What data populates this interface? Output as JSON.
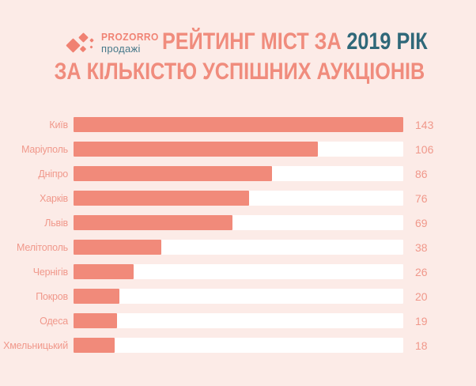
{
  "colors": {
    "background": "#fcebe7",
    "bar_fill": "#f18a7a",
    "bar_track": "#ffffff",
    "title_salmon": "#f08c7d",
    "title_teal": "#2f6879",
    "label_salmon": "#f0988b",
    "logo_salmon": "#f08374",
    "logo_teal": "#47798a"
  },
  "logo": {
    "brand": "PROZORRO",
    "subtitle": "продажі"
  },
  "title": {
    "line1_prefix": "РЕЙТИНГ МІСТ ЗА",
    "line1_highlight": "2019 РІК",
    "line2": "ЗА КІЛЬКІСТЮ УСПІШНИХ АУКЦІОНІВ"
  },
  "chart_data": {
    "type": "bar",
    "orientation": "horizontal",
    "title": "РЕЙТИНГ МІСТ ЗА 2019 РІК ЗА КІЛЬКІСТЮ УСПІШНИХ АУКЦІОНІВ",
    "categories": [
      "Київ",
      "Маріуполь",
      "Дніпро",
      "Харків",
      "Львів",
      "Мелітополь",
      "Чернігів",
      "Покров",
      "Одеса",
      "Хмельницький"
    ],
    "values": [
      143,
      106,
      86,
      76,
      69,
      38,
      26,
      20,
      19,
      18
    ],
    "value_axis_max": 143,
    "value_labels_position": "right",
    "grid": false,
    "legend": "none"
  }
}
